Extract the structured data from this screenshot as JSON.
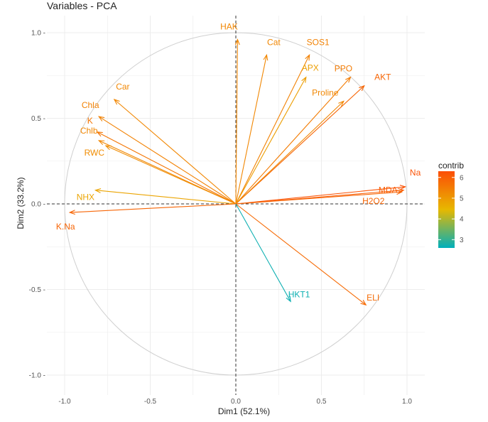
{
  "chart_data": {
    "type": "scatter",
    "title": "Variables - PCA",
    "xlabel": "Dim1 (52.1%)",
    "ylabel": "Dim2 (33.2%)",
    "xlim": [
      -1.0,
      1.0
    ],
    "ylim": [
      -1.0,
      1.0
    ],
    "xticks": [
      "-1.0",
      "-0.5",
      "0.0",
      "0.5",
      "1.0"
    ],
    "yticks": [
      "1.0 -",
      "0.5 -",
      "0.0 -",
      "-0.5 -",
      "-1.0 -"
    ],
    "variables": [
      {
        "name": "HAK",
        "x": 0.01,
        "y": 0.96,
        "contrib": 5.3
      },
      {
        "name": "Cat",
        "x": 0.18,
        "y": 0.87,
        "contrib": 5.3
      },
      {
        "name": "SOS1",
        "x": 0.43,
        "y": 0.87,
        "contrib": 5.4
      },
      {
        "name": "APX",
        "x": 0.41,
        "y": 0.74,
        "contrib": 4.9
      },
      {
        "name": "PPO",
        "x": 0.67,
        "y": 0.74,
        "contrib": 5.5
      },
      {
        "name": "AKT",
        "x": 0.75,
        "y": 0.69,
        "contrib": 5.9
      },
      {
        "name": "Proline",
        "x": 0.63,
        "y": 0.6,
        "contrib": 5.3
      },
      {
        "name": "Car",
        "x": -0.71,
        "y": 0.61,
        "contrib": 5.3
      },
      {
        "name": "Chla",
        "x": -0.8,
        "y": 0.51,
        "contrib": 5.4
      },
      {
        "name": "K",
        "x": -0.81,
        "y": 0.42,
        "contrib": 5.6
      },
      {
        "name": "Chlb",
        "x": -0.8,
        "y": 0.37,
        "contrib": 5.3
      },
      {
        "name": "RWC",
        "x": -0.76,
        "y": 0.34,
        "contrib": 5.2
      },
      {
        "name": "NHX",
        "x": -0.82,
        "y": 0.08,
        "contrib": 4.8
      },
      {
        "name": "K.Na",
        "x": -0.97,
        "y": -0.05,
        "contrib": 5.9
      },
      {
        "name": "Na",
        "x": 0.99,
        "y": 0.1,
        "contrib": 6.2
      },
      {
        "name": "MDA",
        "x": 0.98,
        "y": 0.08,
        "contrib": 6.0
      },
      {
        "name": "H2O2",
        "x": 0.97,
        "y": 0.07,
        "contrib": 5.9
      },
      {
        "name": "ELI",
        "x": 0.76,
        "y": -0.59,
        "contrib": 5.8
      },
      {
        "name": "HKT1",
        "x": 0.32,
        "y": -0.57,
        "contrib": 2.7
      }
    ],
    "legend": {
      "title": "contrib",
      "position": "right",
      "ticks": [
        "6",
        "5",
        "4",
        "3"
      ],
      "range": [
        2.6,
        6.3
      ]
    },
    "colors": {
      "low": "#00AFBB",
      "mid": "#E7B800",
      "high": "#FC4E07",
      "circle": "#cfcfcf",
      "grid": "#ececec",
      "axis_line": "#333333"
    }
  }
}
